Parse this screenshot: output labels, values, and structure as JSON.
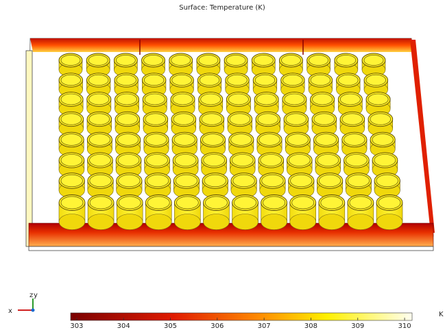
{
  "title": "Surface: Temperature (K)",
  "triad": {
    "x": "x",
    "y": "y",
    "z": "z"
  },
  "colorbar": {
    "unit": "K",
    "range": [
      302.87,
      310.16
    ],
    "ticks": [
      303,
      304,
      305,
      306,
      307,
      308,
      309,
      310
    ]
  }
}
